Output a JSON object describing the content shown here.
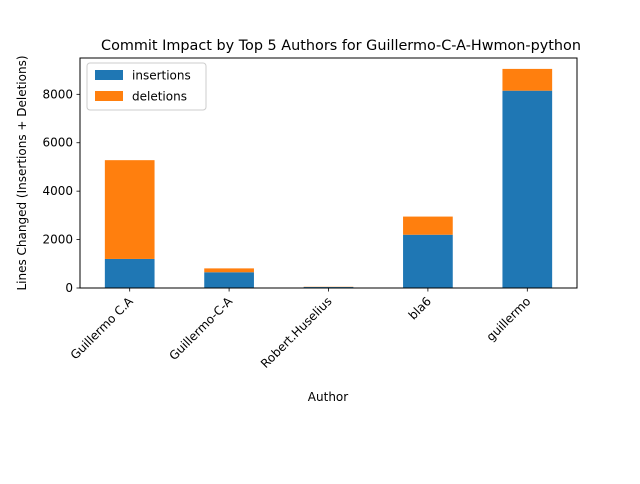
{
  "chart_data": {
    "type": "bar",
    "stacked": true,
    "title": "Commit Impact by Top 5 Authors for Guillermo-C-A-Hwmon-python",
    "xlabel": "Author",
    "ylabel": "Lines Changed (Insertions + Deletions)",
    "categories": [
      "Guillermo C.A",
      "Guillermo-C-A",
      "Robert.Huselius",
      "bla6",
      "guillermo"
    ],
    "series": [
      {
        "name": "insertions",
        "values": [
          1200,
          650,
          40,
          2200,
          8150
        ],
        "color": "#1f77b4"
      },
      {
        "name": "deletions",
        "values": [
          4080,
          160,
          10,
          750,
          900
        ],
        "color": "#ff7f0e"
      }
    ],
    "ylim": [
      0,
      9500
    ],
    "yticks": [
      0,
      2000,
      4000,
      6000,
      8000
    ],
    "grid": false,
    "legend_position": "top-left"
  }
}
